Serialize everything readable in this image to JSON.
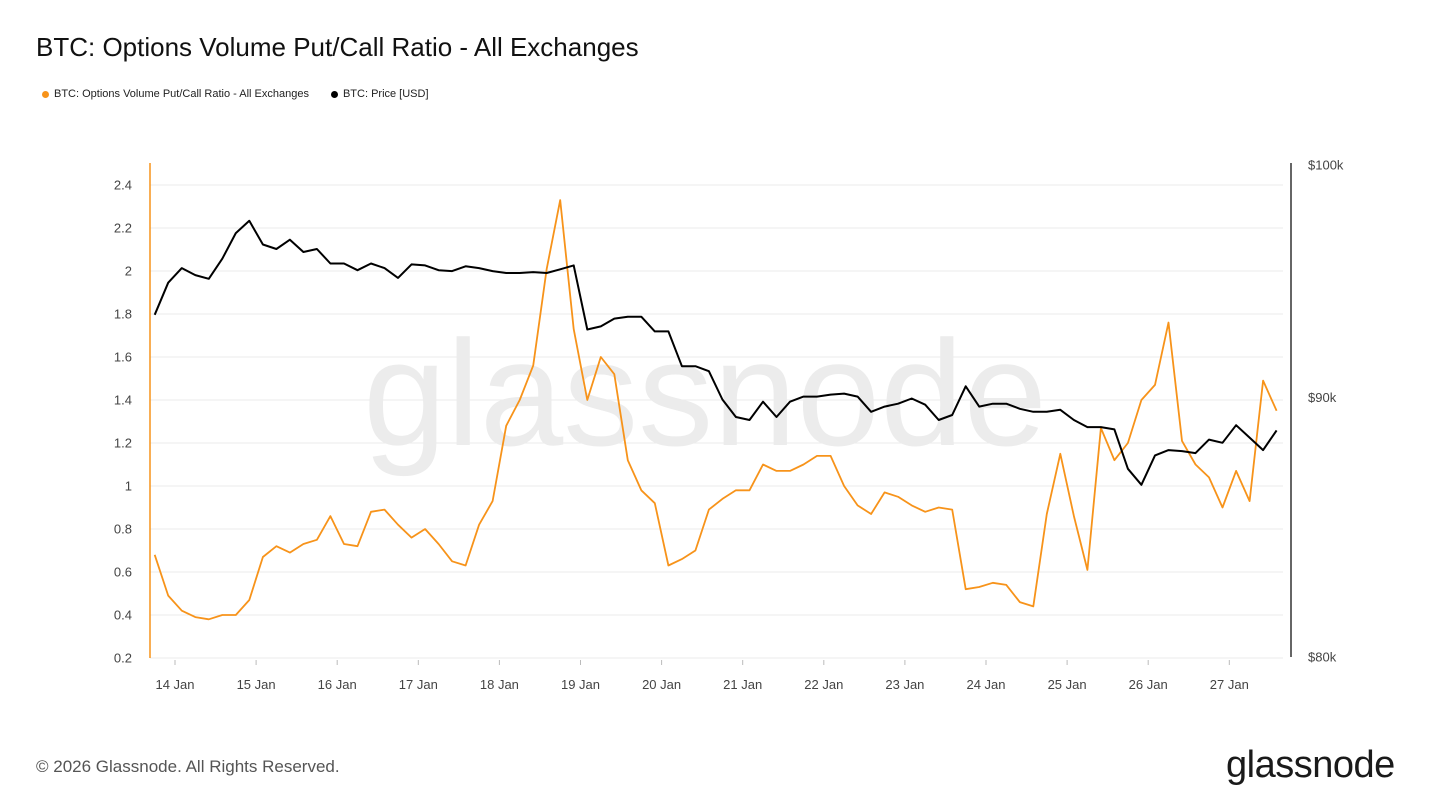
{
  "title": "BTC: Options Volume Put/Call Ratio - All Exchanges",
  "footer": "© 2026 Glassnode. All Rights Reserved.",
  "logo": "glassnode",
  "watermark": "glassnode",
  "chart_data": {
    "type": "line",
    "title": "BTC: Options Volume Put/Call Ratio - All Exchanges",
    "legend_placement": "top-left",
    "grid": true,
    "x_ticks": [
      "14 Jan",
      "15 Jan",
      "16 Jan",
      "17 Jan",
      "18 Jan",
      "19 Jan",
      "20 Jan",
      "21 Jan",
      "22 Jan",
      "23 Jan",
      "24 Jan",
      "25 Jan",
      "26 Jan",
      "27 Jan"
    ],
    "y_left": {
      "ticks": [
        "0.2",
        "0.4",
        "0.6",
        "0.8",
        "1",
        "1.2",
        "1.4",
        "1.6",
        "1.8",
        "2",
        "2.2",
        "2.4"
      ],
      "tick_values": [
        0.2,
        0.4,
        0.6,
        0.8,
        1,
        1.2,
        1.4,
        1.6,
        1.8,
        2,
        2.2,
        2.4
      ],
      "range": [
        0.2,
        2.5
      ],
      "color": "#f7931a"
    },
    "y_right": {
      "ticks": [
        "$80k",
        "$90k",
        "$100k"
      ],
      "tick_values": [
        80000,
        90000,
        100000
      ],
      "range": [
        80000,
        100000
      ],
      "scale": "log",
      "color": "#000000"
    },
    "x": [
      "13 Jan 18:00",
      "13 Jan 22:00",
      "14 Jan 02:00",
      "14 Jan 06:00",
      "14 Jan 10:00",
      "14 Jan 14:00",
      "14 Jan 18:00",
      "14 Jan 22:00",
      "15 Jan 02:00",
      "15 Jan 06:00",
      "15 Jan 10:00",
      "15 Jan 14:00",
      "15 Jan 18:00",
      "15 Jan 22:00",
      "16 Jan 02:00",
      "16 Jan 06:00",
      "16 Jan 10:00",
      "16 Jan 14:00",
      "16 Jan 18:00",
      "16 Jan 22:00",
      "17 Jan 02:00",
      "17 Jan 06:00",
      "17 Jan 10:00",
      "17 Jan 14:00",
      "17 Jan 18:00",
      "17 Jan 22:00",
      "18 Jan 02:00",
      "18 Jan 06:00",
      "18 Jan 10:00",
      "18 Jan 14:00",
      "18 Jan 18:00",
      "18 Jan 22:00",
      "19 Jan 02:00",
      "19 Jan 06:00",
      "19 Jan 10:00",
      "19 Jan 14:00",
      "19 Jan 18:00",
      "19 Jan 22:00",
      "20 Jan 02:00",
      "20 Jan 06:00",
      "20 Jan 10:00",
      "20 Jan 14:00",
      "20 Jan 18:00",
      "20 Jan 22:00",
      "21 Jan 02:00",
      "21 Jan 06:00",
      "21 Jan 10:00",
      "21 Jan 14:00",
      "21 Jan 18:00",
      "21 Jan 22:00",
      "22 Jan 02:00",
      "22 Jan 06:00",
      "22 Jan 10:00",
      "22 Jan 14:00",
      "22 Jan 18:00",
      "22 Jan 22:00",
      "23 Jan 02:00",
      "23 Jan 06:00",
      "23 Jan 10:00",
      "23 Jan 14:00",
      "23 Jan 18:00",
      "23 Jan 22:00",
      "24 Jan 02:00",
      "24 Jan 06:00",
      "24 Jan 10:00",
      "24 Jan 14:00",
      "24 Jan 18:00",
      "24 Jan 22:00",
      "25 Jan 02:00",
      "25 Jan 06:00",
      "25 Jan 10:00",
      "25 Jan 14:00",
      "25 Jan 18:00",
      "25 Jan 22:00",
      "26 Jan 02:00",
      "26 Jan 06:00",
      "26 Jan 10:00",
      "26 Jan 14:00",
      "26 Jan 18:00",
      "26 Jan 22:00",
      "27 Jan 02:00",
      "27 Jan 06:00",
      "27 Jan 10:00",
      "27 Jan 14:00"
    ],
    "series": [
      {
        "name": "BTC: Options Volume Put/Call Ratio - All Exchanges",
        "axis": "left",
        "color": "#f7931a",
        "values": [
          0.68,
          0.49,
          0.42,
          0.39,
          0.38,
          0.4,
          0.4,
          0.47,
          0.67,
          0.72,
          0.69,
          0.73,
          0.75,
          0.86,
          0.73,
          0.72,
          0.88,
          0.89,
          0.82,
          0.76,
          0.8,
          0.73,
          0.65,
          0.63,
          0.82,
          0.93,
          1.28,
          1.4,
          1.56,
          2.01,
          2.33,
          1.73,
          1.4,
          1.6,
          1.52,
          1.12,
          0.98,
          0.92,
          0.63,
          0.66,
          0.7,
          0.89,
          0.94,
          0.98,
          0.98,
          1.1,
          1.07,
          1.07,
          1.1,
          1.14,
          1.14,
          1.0,
          0.91,
          0.87,
          0.97,
          0.95,
          0.91,
          0.88,
          0.9,
          0.89,
          0.52,
          0.53,
          0.55,
          0.54,
          0.46,
          0.44,
          0.87,
          1.15,
          0.86,
          0.61,
          1.27,
          1.12,
          1.2,
          1.4,
          1.47,
          1.76,
          1.21,
          1.1,
          1.04,
          0.9,
          1.07,
          0.93,
          1.49,
          1.35
        ]
      },
      {
        "name": "BTC: Price [USD]",
        "axis": "right",
        "color": "#000000",
        "values": [
          93430,
          94800,
          95430,
          95130,
          94970,
          95840,
          96960,
          97500,
          96460,
          96260,
          96670,
          96130,
          96260,
          95630,
          95630,
          95340,
          95630,
          95430,
          95010,
          95590,
          95550,
          95340,
          95300,
          95510,
          95430,
          95300,
          95220,
          95220,
          95260,
          95220,
          95380,
          95550,
          92810,
          92940,
          93270,
          93350,
          93350,
          92730,
          92730,
          91280,
          91280,
          91070,
          89910,
          89200,
          89080,
          89820,
          89200,
          89820,
          90030,
          90030,
          90110,
          90150,
          90030,
          89410,
          89620,
          89740,
          89950,
          89700,
          89080,
          89280,
          90450,
          89620,
          89740,
          89740,
          89530,
          89410,
          89410,
          89490,
          89080,
          88790,
          88790,
          88700,
          87130,
          86500,
          87660,
          87870,
          87830,
          87750,
          88290,
          88160,
          88870,
          88370,
          87870,
          88660
        ]
      }
    ]
  }
}
